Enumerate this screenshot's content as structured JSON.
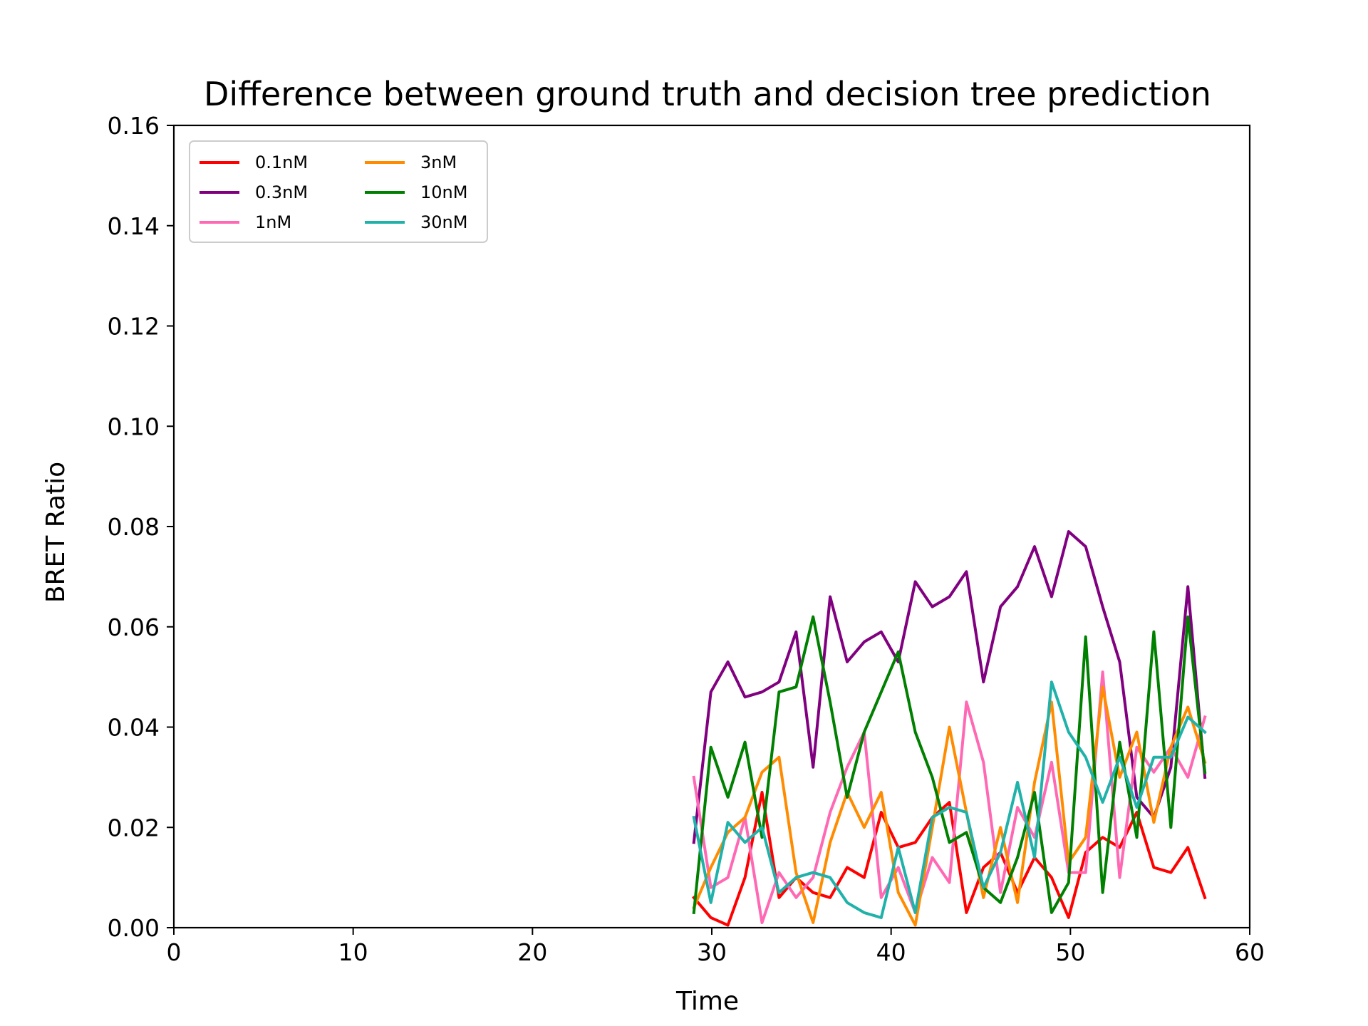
{
  "chart_data": {
    "type": "line",
    "title": "Difference between ground truth and decision tree prediction",
    "xlabel": "Time",
    "ylabel": "BRET Ratio",
    "xlim": [
      0,
      60
    ],
    "ylim": [
      0,
      0.16
    ],
    "xticks": [
      "0",
      "10",
      "20",
      "30",
      "40",
      "50",
      "60"
    ],
    "yticks": [
      "0.00",
      "0.02",
      "0.04",
      "0.06",
      "0.08",
      "0.10",
      "0.12",
      "0.14",
      "0.16"
    ],
    "grid": false,
    "legend_position": "top-left",
    "legend_columns": 2,
    "x": [
      29.0,
      29.95,
      30.9,
      31.85,
      32.8,
      33.75,
      34.7,
      35.65,
      36.6,
      37.55,
      38.5,
      39.45,
      40.4,
      41.35,
      42.3,
      43.25,
      44.2,
      45.15,
      46.1,
      47.05,
      48.0,
      48.95,
      49.9,
      50.85,
      51.8,
      52.75,
      53.7,
      54.65,
      55.6,
      56.55,
      57.5
    ],
    "series": [
      {
        "name": "0.1nM",
        "color": "#ff0000",
        "values": [
          0.006,
          0.002,
          0.0005,
          0.01,
          0.027,
          0.006,
          0.01,
          0.007,
          0.006,
          0.012,
          0.01,
          0.023,
          0.016,
          0.017,
          0.022,
          0.025,
          0.003,
          0.012,
          0.015,
          0.007,
          0.014,
          0.01,
          0.002,
          0.015,
          0.018,
          0.016,
          0.023,
          0.012,
          0.011,
          0.016,
          0.006
        ]
      },
      {
        "name": "0.3nM",
        "color": "#800080",
        "values": [
          0.017,
          0.047,
          0.053,
          0.046,
          0.047,
          0.049,
          0.059,
          0.032,
          0.066,
          0.053,
          0.057,
          0.059,
          0.053,
          0.069,
          0.064,
          0.066,
          0.071,
          0.049,
          0.064,
          0.068,
          0.076,
          0.066,
          0.079,
          0.076,
          0.064,
          0.053,
          0.026,
          0.022,
          0.032,
          0.068,
          0.03
        ]
      },
      {
        "name": "1nM",
        "color": "#ff69b4",
        "values": [
          0.03,
          0.008,
          0.01,
          0.022,
          0.001,
          0.011,
          0.006,
          0.01,
          0.023,
          0.032,
          0.039,
          0.006,
          0.012,
          0.003,
          0.014,
          0.009,
          0.045,
          0.033,
          0.007,
          0.024,
          0.018,
          0.033,
          0.011,
          0.011,
          0.051,
          0.01,
          0.036,
          0.031,
          0.036,
          0.03,
          0.042
        ]
      },
      {
        "name": "3nM",
        "color": "#ff8c00",
        "values": [
          0.004,
          0.012,
          0.019,
          0.022,
          0.031,
          0.034,
          0.011,
          0.001,
          0.017,
          0.027,
          0.02,
          0.027,
          0.007,
          0.0005,
          0.02,
          0.04,
          0.023,
          0.006,
          0.02,
          0.005,
          0.029,
          0.045,
          0.013,
          0.018,
          0.048,
          0.03,
          0.039,
          0.021,
          0.036,
          0.044,
          0.033
        ]
      },
      {
        "name": "10nM",
        "color": "#008000",
        "values": [
          0.003,
          0.036,
          0.026,
          0.037,
          0.018,
          0.047,
          0.048,
          0.062,
          0.045,
          0.026,
          0.039,
          0.047,
          0.055,
          0.039,
          0.03,
          0.017,
          0.019,
          0.008,
          0.005,
          0.014,
          0.027,
          0.003,
          0.009,
          0.058,
          0.007,
          0.037,
          0.018,
          0.059,
          0.02,
          0.062,
          0.031
        ]
      },
      {
        "name": "30nM",
        "color": "#20b2aa",
        "values": [
          0.022,
          0.005,
          0.021,
          0.017,
          0.02,
          0.007,
          0.01,
          0.011,
          0.01,
          0.005,
          0.003,
          0.002,
          0.016,
          0.003,
          0.022,
          0.024,
          0.023,
          0.008,
          0.015,
          0.029,
          0.014,
          0.049,
          0.039,
          0.034,
          0.025,
          0.034,
          0.024,
          0.034,
          0.034,
          0.042,
          0.039
        ]
      }
    ]
  }
}
